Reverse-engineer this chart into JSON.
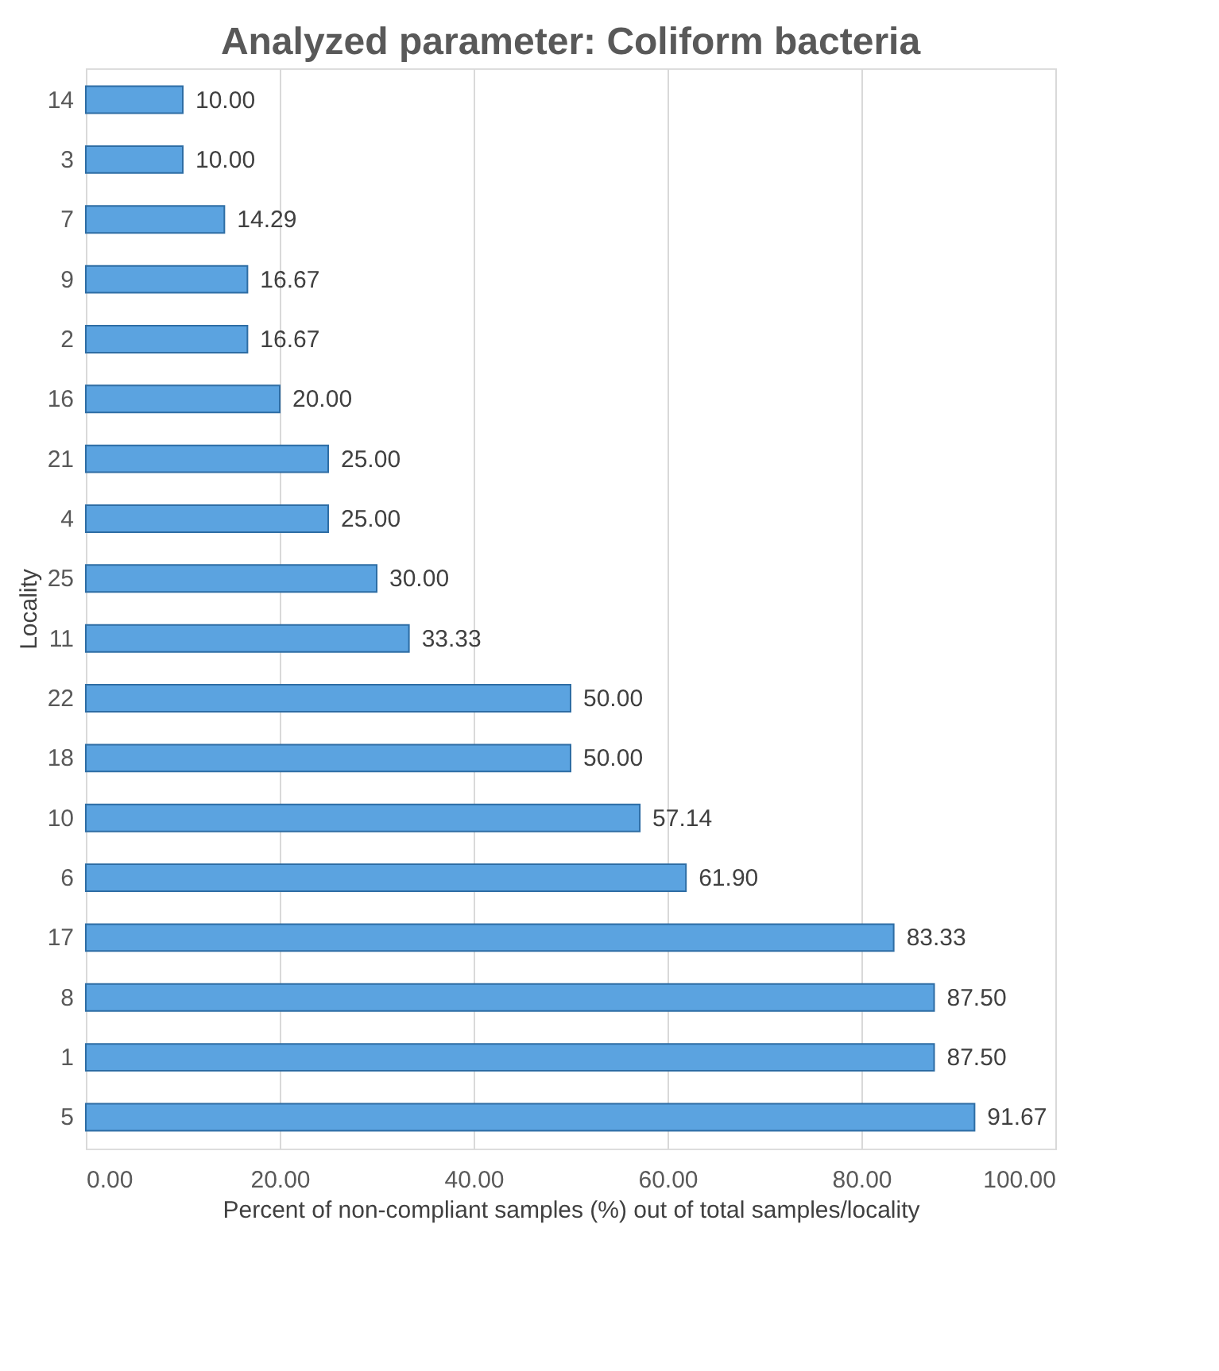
{
  "chart_data": {
    "type": "bar",
    "orientation": "horizontal",
    "title": "Analyzed parameter: Coliform bacteria",
    "xlabel": "Percent of non-compliant samples (%) out of total samples/locality",
    "ylabel": "Locality",
    "categories": [
      "14",
      "3",
      "7",
      "9",
      "2",
      "16",
      "21",
      "4",
      "25",
      "11",
      "22",
      "18",
      "10",
      "6",
      "17",
      "8",
      "1",
      "5"
    ],
    "values": [
      10.0,
      10.0,
      14.29,
      16.67,
      16.67,
      20.0,
      25.0,
      25.0,
      30.0,
      33.33,
      50.0,
      50.0,
      57.14,
      61.9,
      83.33,
      87.5,
      87.5,
      91.67
    ],
    "color": "#5ba3e0",
    "xlim": [
      0,
      100
    ],
    "xticks": [
      {
        "value": 0,
        "label": "0.00"
      },
      {
        "value": 20,
        "label": "20.00"
      },
      {
        "value": 40,
        "label": "40.00"
      },
      {
        "value": 60,
        "label": "60.00"
      },
      {
        "value": 80,
        "label": "80.00"
      },
      {
        "value": 100,
        "label": "100.00"
      }
    ],
    "value_labels": [
      "10.00",
      "10.00",
      "14.29",
      "16.67",
      "16.67",
      "20.00",
      "25.00",
      "25.00",
      "30.00",
      "33.33",
      "50.00",
      "50.00",
      "57.14",
      "61.90",
      "83.33",
      "87.50",
      "87.50",
      "91.67"
    ],
    "grid": "x"
  }
}
